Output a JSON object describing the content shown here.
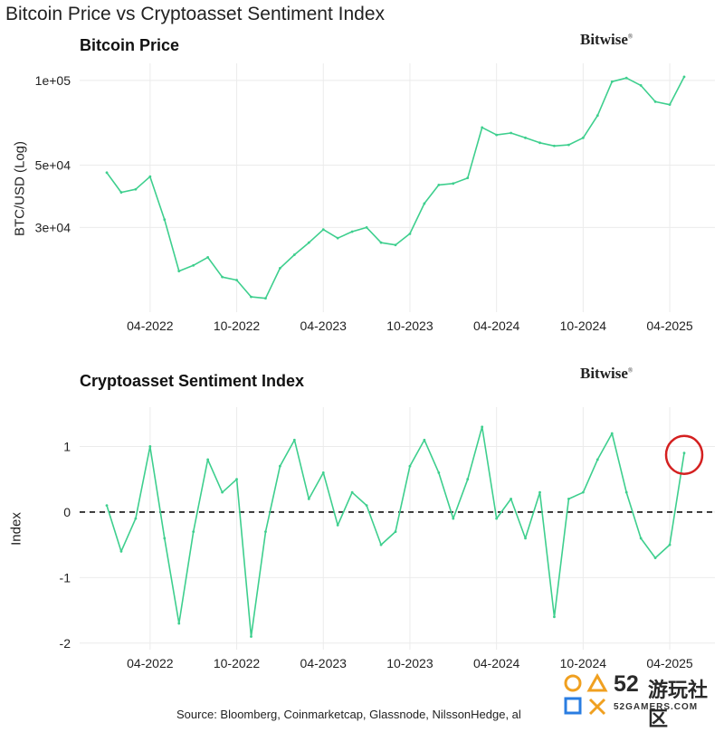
{
  "page": {
    "title": "Bitcoin Price vs Cryptoasset Sentiment Index",
    "source": "Source: Bloomberg, Coinmarketcap, Glassnode, NilssonHedge, al"
  },
  "brand": {
    "name": "Bitwise",
    "mark": "®"
  },
  "watermark": {
    "number": "52",
    "chinese": "游玩社区",
    "url": "52GAMERS.COM"
  },
  "colors": {
    "series": "#3ecf8e",
    "zero_line": "#111111",
    "grid": "#ebebeb",
    "annotation": "#d42020"
  },
  "chart_data": [
    {
      "type": "line",
      "title": "Bitcoin Price",
      "ylabel": "BTC/USD (Log)",
      "yscale": "log",
      "ylim": [
        15000,
        115000
      ],
      "yticks": [
        100000,
        50000,
        30000
      ],
      "ytick_labels": [
        "1e+05",
        "5e+04",
        "3e+04"
      ],
      "xticks": [
        "04-2022",
        "10-2022",
        "04-2023",
        "10-2023",
        "04-2024",
        "10-2024",
        "04-2025"
      ],
      "grid": true,
      "series": [
        {
          "x": [
            "2022-01",
            "2022-02",
            "2022-03",
            "2022-04",
            "2022-05",
            "2022-06",
            "2022-07",
            "2022-08",
            "2022-09",
            "2022-10",
            "2022-11",
            "2022-12",
            "2023-01",
            "2023-02",
            "2023-03",
            "2023-04",
            "2023-05",
            "2023-06",
            "2023-07",
            "2023-08",
            "2023-09",
            "2023-10",
            "2023-11",
            "2023-12",
            "2024-01",
            "2024-02",
            "2024-03",
            "2024-04",
            "2024-05",
            "2024-06",
            "2024-07",
            "2024-08",
            "2024-09",
            "2024-10",
            "2024-11",
            "2024-12",
            "2025-01",
            "2025-02",
            "2025-03",
            "2025-04",
            "2025-05"
          ],
          "values": [
            47000,
            40000,
            41000,
            45500,
            32000,
            21000,
            22000,
            23500,
            20000,
            19500,
            17000,
            16800,
            21500,
            24000,
            26500,
            29500,
            27500,
            29000,
            30000,
            26500,
            26000,
            28500,
            36500,
            42500,
            43000,
            45000,
            68000,
            64000,
            65000,
            62500,
            60000,
            58500,
            59000,
            62500,
            75000,
            99000,
            102000,
            96000,
            84000,
            82000,
            103000
          ]
        }
      ]
    },
    {
      "type": "line",
      "title": "Cryptoasset Sentiment Index",
      "ylabel": "Index",
      "ylim": [
        -2.1,
        1.6
      ],
      "yticks": [
        1,
        0,
        -1,
        -2
      ],
      "ytick_labels": [
        "1",
        "0",
        "-1",
        "-2"
      ],
      "xticks": [
        "04-2022",
        "10-2022",
        "04-2023",
        "10-2023",
        "04-2024",
        "10-2024",
        "04-2025"
      ],
      "reference_line": {
        "y": 0,
        "style": "dashed"
      },
      "annotation": {
        "type": "circle",
        "at": "2025-05",
        "y": 0.9
      },
      "grid": true,
      "series": [
        {
          "x": [
            "2022-01",
            "2022-02",
            "2022-03",
            "2022-04",
            "2022-05",
            "2022-06",
            "2022-07",
            "2022-08",
            "2022-09",
            "2022-10",
            "2022-11",
            "2022-12",
            "2023-01",
            "2023-02",
            "2023-03",
            "2023-04",
            "2023-05",
            "2023-06",
            "2023-07",
            "2023-08",
            "2023-09",
            "2023-10",
            "2023-11",
            "2023-12",
            "2024-01",
            "2024-02",
            "2024-03",
            "2024-04",
            "2024-05",
            "2024-06",
            "2024-07",
            "2024-08",
            "2024-09",
            "2024-10",
            "2024-11",
            "2024-12",
            "2025-01",
            "2025-02",
            "2025-03",
            "2025-04",
            "2025-05"
          ],
          "values": [
            0.1,
            -0.6,
            -0.1,
            1.0,
            -0.4,
            -1.7,
            -0.3,
            0.8,
            0.3,
            0.5,
            -1.9,
            -0.3,
            0.7,
            1.1,
            0.2,
            0.6,
            -0.2,
            0.3,
            0.1,
            -0.5,
            -0.3,
            0.7,
            1.1,
            0.6,
            -0.1,
            0.5,
            1.3,
            -0.1,
            0.2,
            -0.4,
            0.3,
            -1.6,
            0.2,
            0.3,
            0.8,
            1.2,
            0.3,
            -0.4,
            -0.7,
            -0.5,
            0.9
          ]
        }
      ]
    }
  ]
}
